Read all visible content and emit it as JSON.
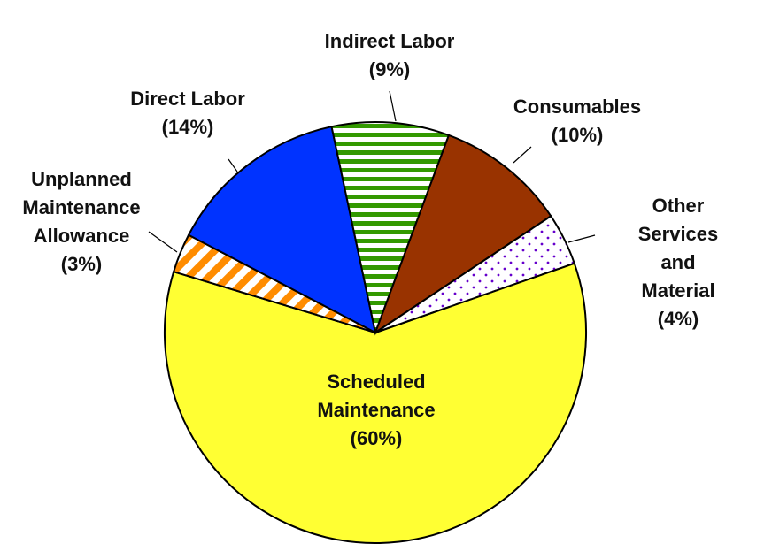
{
  "chart_data": {
    "type": "pie",
    "categories": [
      "Scheduled\nMaintenance",
      "Unplanned\nMaintenance\nAllowance",
      "Direct Labor",
      "Indirect Labor",
      "Consumables",
      "Other Services\nand Material"
    ],
    "values": [
      60,
      3,
      14,
      9,
      10,
      4
    ],
    "value_labels": [
      "(60%)",
      "(3%)",
      "(14%)",
      "(9%)",
      "(10%)",
      "(4%)"
    ],
    "colors": [
      "#ffff33",
      "#ff8c00",
      "#0033ff",
      "#339900",
      "#993300",
      "#6600cc"
    ],
    "patterns": [
      "solid",
      "diagonal",
      "solid",
      "horizontal",
      "solid",
      "dots"
    ]
  }
}
